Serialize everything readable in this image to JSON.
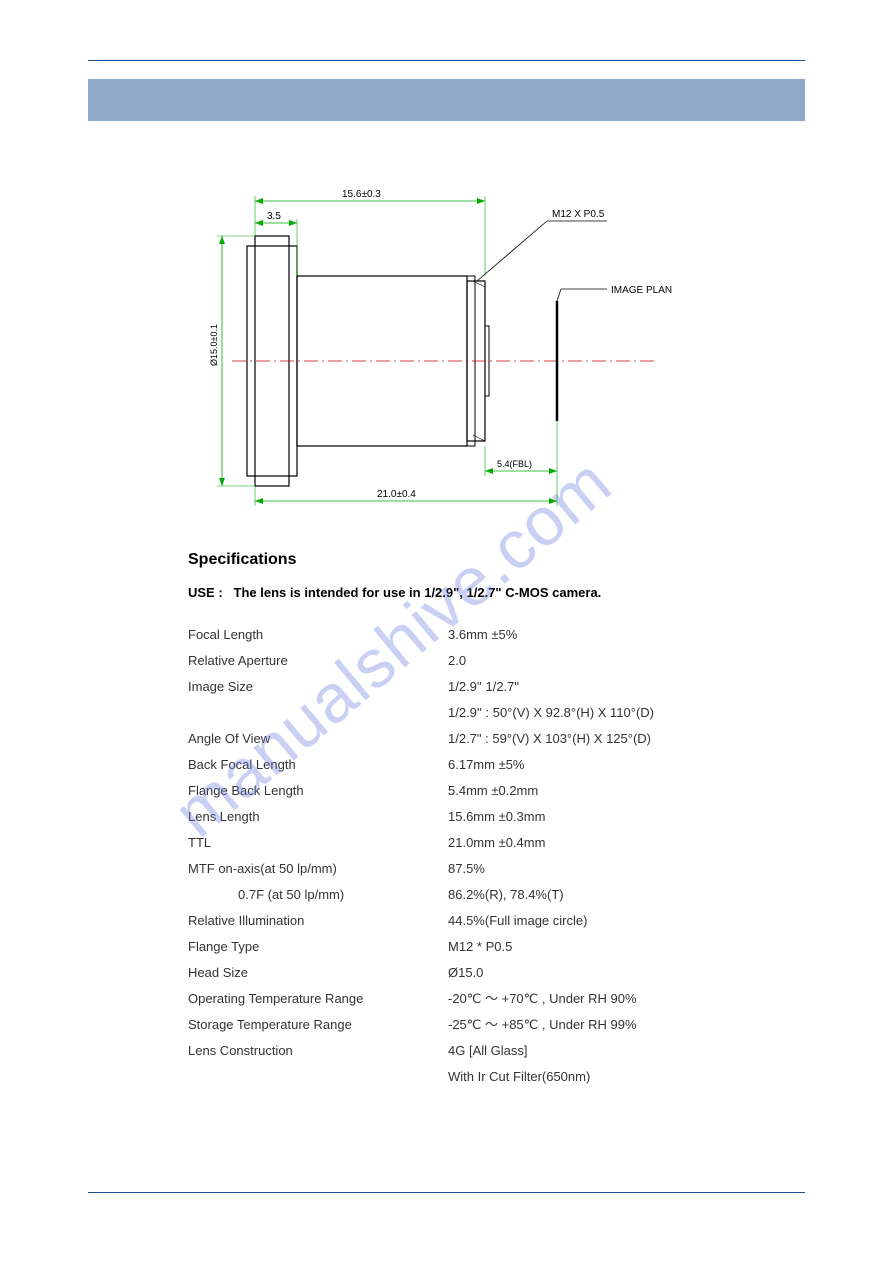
{
  "watermark": "manualshive.com",
  "diagram": {
    "dims": {
      "top_width": "15.6±0.3",
      "flange_width": "3.5",
      "thread_label": "M12 X P0.5",
      "image_plan": "IMAGE PLAN",
      "fbl": "5.4(FBL)",
      "total_length": "21.0±0.4",
      "head_dia": "Ø15.0±0.1"
    },
    "colors": {
      "outline": "#000000",
      "dim_lines": "#00aa00",
      "center_line": "#cc0000",
      "image_plan_line": "#000000"
    }
  },
  "specs": {
    "title": "Specifications",
    "use_label": "USE :",
    "use_text": "The lens is intended for use in 1/2.9\", 1/2.7\"   C-MOS camera.",
    "rows": [
      {
        "label": "Focal Length",
        "value": "3.6mm  ±5%"
      },
      {
        "label": "Relative Aperture",
        "value": "2.0"
      },
      {
        "label": "Image Size",
        "value": "1/2.9'' 1/2.7\""
      },
      {
        "label": "",
        "value": "1/2.9''   : 50°(V) X 92.8°(H) X 110°(D)"
      },
      {
        "label": "Angle Of View",
        "value": "1/2.7\"   : 59°(V) X 103°(H) X 125°(D)"
      },
      {
        "label": "Back Focal Length",
        "value": "6.17mm  ±5%"
      },
      {
        "label": "Flange Back Length",
        "value": "5.4mm  ±0.2mm"
      },
      {
        "label": "Lens Length",
        "value": "15.6mm  ±0.3mm"
      },
      {
        "label": "TTL",
        "value": "21.0mm  ±0.4mm"
      },
      {
        "label": "MTF on-axis(at 50 lp/mm)",
        "value": "87.5%"
      },
      {
        "label": "0.7F (at 50 lp/mm)",
        "value": "86.2%(R), 78.4%(T)",
        "indent": true
      },
      {
        "label": "Relative Illumination",
        "value": "44.5%(Full image circle)"
      },
      {
        "label": "Flange Type",
        "value": "M12 * P0.5"
      },
      {
        "label": "Head Size",
        "value": "Ø15.0"
      },
      {
        "label": "Operating Temperature Range",
        "value": "-20℃ ～ +70℃ , Under RH 90%"
      },
      {
        "label": "Storage Temperature Range",
        "value": "-25℃ ～ +85℃ , Under RH 99%"
      },
      {
        "label": "Lens Construction",
        "value": "4G [All Glass]"
      },
      {
        "label": "",
        "value": "With Ir Cut Filter(650nm)"
      }
    ]
  }
}
